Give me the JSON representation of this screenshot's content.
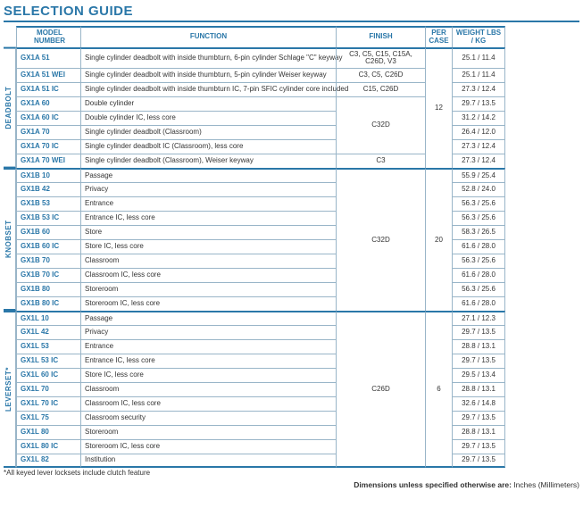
{
  "title": "SELECTION GUIDE",
  "headers": {
    "model": "MODEL NUMBER",
    "function": "FUNCTION",
    "finish": "FINISH",
    "percase": "PER CASE",
    "weight": "WEIGHT LBS / KG"
  },
  "sections": [
    {
      "label": "DEADBOLT",
      "percase": "12",
      "rows": [
        {
          "model": "GX1A 51",
          "function": "Single cylinder deadbolt with inside thumbturn, 6-pin cylinder Schlage \"C\" keyway",
          "finish": "C3, C5, C15, C15A, C26D, V3",
          "weight": "25.1 / 11.4"
        },
        {
          "model": "GX1A 51 WEI",
          "function": "Single cylinder deadbolt with inside thumbturn, 5-pin cylinder Weiser keyway",
          "finish": "C3, C5, C26D",
          "weight": "25.1 / 11.4"
        },
        {
          "model": "GX1A 51 IC",
          "function": "Single cylinder deadbolt with inside thumbturn IC, 7-pin SFIC cylinder core included",
          "finish": "C15, C26D",
          "weight": "27.3 / 12.4"
        },
        {
          "model": "GX1A 60",
          "function": "Double cylinder",
          "weight": "29.7 / 13.5"
        },
        {
          "model": "GX1A 60 IC",
          "function": "Double cylinder IC, less core",
          "weight": "31.2 / 14.2"
        },
        {
          "model": "GX1A 70",
          "function": "Single cylinder deadbolt (Classroom)",
          "weight": "26.4 / 12.0"
        },
        {
          "model": "GX1A 70 IC",
          "function": "Single cylinder deadbolt IC (Classroom), less core",
          "weight": "27.3 / 12.4"
        },
        {
          "model": "GX1A 70 WEI",
          "function": "Single cylinder deadbolt (Classroom), Weiser keyway",
          "finish": "C3",
          "weight": "27.3 / 12.4"
        }
      ],
      "finishGroups": [
        {
          "start": 3,
          "span": 4,
          "text": "C32D"
        }
      ]
    },
    {
      "label": "KNOBSET",
      "percase": "20",
      "finish_all": "C32D",
      "rows": [
        {
          "model": "GX1B 10",
          "function": "Passage",
          "weight": "55.9 / 25.4"
        },
        {
          "model": "GX1B 42",
          "function": "Privacy",
          "weight": "52.8 / 24.0"
        },
        {
          "model": "GX1B 53",
          "function": "Entrance",
          "weight": "56.3 / 25.6"
        },
        {
          "model": "GX1B 53 IC",
          "function": "Entrance IC, less core",
          "weight": "56.3 / 25.6"
        },
        {
          "model": "GX1B 60",
          "function": "Store",
          "weight": "58.3 / 26.5"
        },
        {
          "model": "GX1B 60 IC",
          "function": "Store IC, less core",
          "weight": "61.6 / 28.0"
        },
        {
          "model": "GX1B 70",
          "function": "Classroom",
          "weight": "56.3 / 25.6"
        },
        {
          "model": "GX1B 70 IC",
          "function": "Classroom IC, less core",
          "weight": "61.6 / 28.0"
        },
        {
          "model": "GX1B 80",
          "function": "Storeroom",
          "weight": "56.3 / 25.6"
        },
        {
          "model": "GX1B 80 IC",
          "function": "Storeroom IC, less core",
          "weight": "61.6 / 28.0"
        }
      ]
    },
    {
      "label": "LEVERSET*",
      "percase": "6",
      "finish_all": "C26D",
      "rows": [
        {
          "model": "GX1L 10",
          "function": "Passage",
          "weight": "27.1 / 12.3"
        },
        {
          "model": "GX1L 42",
          "function": "Privacy",
          "weight": "29.7 / 13.5"
        },
        {
          "model": "GX1L 53",
          "function": "Entrance",
          "weight": "28.8 / 13.1"
        },
        {
          "model": "GX1L 53 IC",
          "function": "Entrance IC, less core",
          "weight": "29.7 / 13.5"
        },
        {
          "model": "GX1L 60 IC",
          "function": "Store IC, less core",
          "weight": "29.5 / 13.4"
        },
        {
          "model": "GX1L 70",
          "function": "Classroom",
          "weight": "28.8 / 13.1"
        },
        {
          "model": "GX1L 70 IC",
          "function": "Classroom IC, less core",
          "weight": "32.6 / 14.8"
        },
        {
          "model": "GX1L 75",
          "function": "Classroom security",
          "weight": "29.7 / 13.5"
        },
        {
          "model": "GX1L 80",
          "function": "Storeroom",
          "weight": "28.8 / 13.1"
        },
        {
          "model": "GX1L 80 IC",
          "function": "Storeroom IC, less core",
          "weight": "29.7 / 13.5"
        },
        {
          "model": "GX1L 82",
          "function": "Institution",
          "weight": "29.7 / 13.5"
        }
      ]
    }
  ],
  "footnote": "*All keyed lever locksets include clutch feature",
  "dimNote": {
    "bold": "Dimensions unless specified otherwise are:",
    "rest": " Inches (Millimeters)"
  }
}
